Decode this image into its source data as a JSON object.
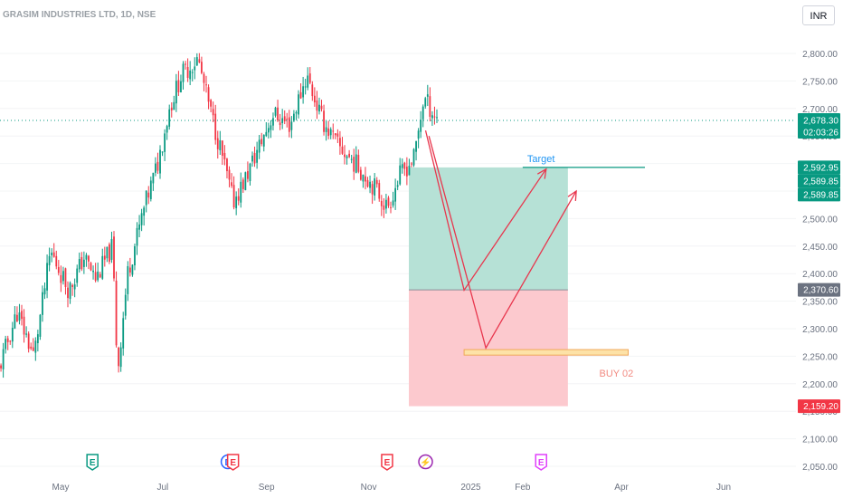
{
  "chart_data": {
    "type": "candlestick",
    "title": "GRASIM INDUSTRIES LTD, 1D, NSE",
    "currency": "INR",
    "y_ticks": [
      2800,
      2750,
      2700,
      2650,
      2600,
      2550,
      2500,
      2450,
      2400,
      2350,
      2300,
      2250,
      2200,
      2150,
      2100,
      2050
    ],
    "y_tick_labels": [
      "2,800.00",
      "2,750.00",
      "2,700.00",
      "2,650.00",
      "2,600.00",
      "2,550.00",
      "2,500.00",
      "2,450.00",
      "2,400.00",
      "2,350.00",
      "2,300.00",
      "2,250.00",
      "2,200.00",
      "2,150.00",
      "2,100.00",
      "2,050.00"
    ],
    "x_labels": [
      {
        "label": "May",
        "date": "2024-05-01"
      },
      {
        "label": "Jul",
        "date": "2024-07-01"
      },
      {
        "label": "Sep",
        "date": "2024-09-01"
      },
      {
        "label": "Nov",
        "date": "2024-11-01"
      },
      {
        "label": "2025",
        "date": "2025-01-01"
      },
      {
        "label": "Feb",
        "date": "2025-02-01"
      },
      {
        "label": "Apr",
        "date": "2025-04-01"
      },
      {
        "label": "Jun",
        "date": "2025-06-01"
      }
    ],
    "price_path": [
      [
        "2024-03-25",
        2225
      ],
      [
        "2024-04-05",
        2330
      ],
      [
        "2024-04-15",
        2250
      ],
      [
        "2024-04-25",
        2440
      ],
      [
        "2024-05-06",
        2370
      ],
      [
        "2024-05-15",
        2430
      ],
      [
        "2024-05-22",
        2390
      ],
      [
        "2024-06-01",
        2450
      ],
      [
        "2024-06-04",
        2220
      ],
      [
        "2024-06-10",
        2400
      ],
      [
        "2024-06-20",
        2520
      ],
      [
        "2024-06-28",
        2600
      ],
      [
        "2024-07-05",
        2700
      ],
      [
        "2024-07-12",
        2760
      ],
      [
        "2024-07-22",
        2790
      ],
      [
        "2024-07-29",
        2700
      ],
      [
        "2024-08-05",
        2620
      ],
      [
        "2024-08-12",
        2530
      ],
      [
        "2024-08-19",
        2570
      ],
      [
        "2024-08-26",
        2620
      ],
      [
        "2024-09-05",
        2690
      ],
      [
        "2024-09-15",
        2670
      ],
      [
        "2024-09-25",
        2760
      ],
      [
        "2024-10-04",
        2680
      ],
      [
        "2024-10-14",
        2630
      ],
      [
        "2024-10-24",
        2600
      ],
      [
        "2024-11-04",
        2560
      ],
      [
        "2024-11-12",
        2520
      ],
      [
        "2024-11-20",
        2580
      ],
      [
        "2024-11-28",
        2610
      ],
      [
        "2024-12-04",
        2720
      ],
      [
        "2024-12-10",
        2690
      ],
      [
        "2024-12-13",
        2678.3
      ]
    ],
    "current_price": 2678.3,
    "current_price_label": "2,678.30",
    "countdown_label": "02:03:26",
    "events": [
      {
        "date": "2024-05-20",
        "symbol": "E",
        "color": "#089981"
      },
      {
        "date": "2024-08-09",
        "symbol": "D",
        "color": "#2962ff"
      },
      {
        "date": "2024-08-12",
        "symbol": "E",
        "color": "#f23645"
      },
      {
        "date": "2024-11-12",
        "symbol": "E",
        "color": "#f23645"
      },
      {
        "date": "2024-12-05",
        "symbol": "⚡",
        "color": "#9c27b0"
      },
      {
        "date": "2025-02-12",
        "symbol": "E",
        "color": "#e040fb"
      }
    ],
    "position": {
      "start_date": "2024-11-25",
      "end_date": "2025-02-28",
      "entry": 2370.6,
      "entry_label": "2,370.60",
      "target": 2592.95,
      "target_label": "2,592.95",
      "stop": 2159.2,
      "stop_label": "2,159.20"
    },
    "extra_price_labels": [
      "2,589.85",
      "2,589.85"
    ],
    "target_line": {
      "value": 2592.95,
      "start_date": "2025-02-01",
      "end_date": "2025-04-15",
      "text": "Target"
    },
    "buy_zone": {
      "start_date": "2024-12-28",
      "end_date": "2025-04-05",
      "low": 2252,
      "high": 2262,
      "text": "BUY 02"
    },
    "projection_paths": [
      [
        [
          "2024-12-05",
          2660
        ],
        [
          "2024-12-28",
          2370
        ],
        [
          "2025-02-15",
          2590
        ]
      ],
      [
        [
          "2024-12-07",
          2650
        ],
        [
          "2025-01-10",
          2265
        ],
        [
          "2025-03-05",
          2550
        ]
      ]
    ]
  }
}
